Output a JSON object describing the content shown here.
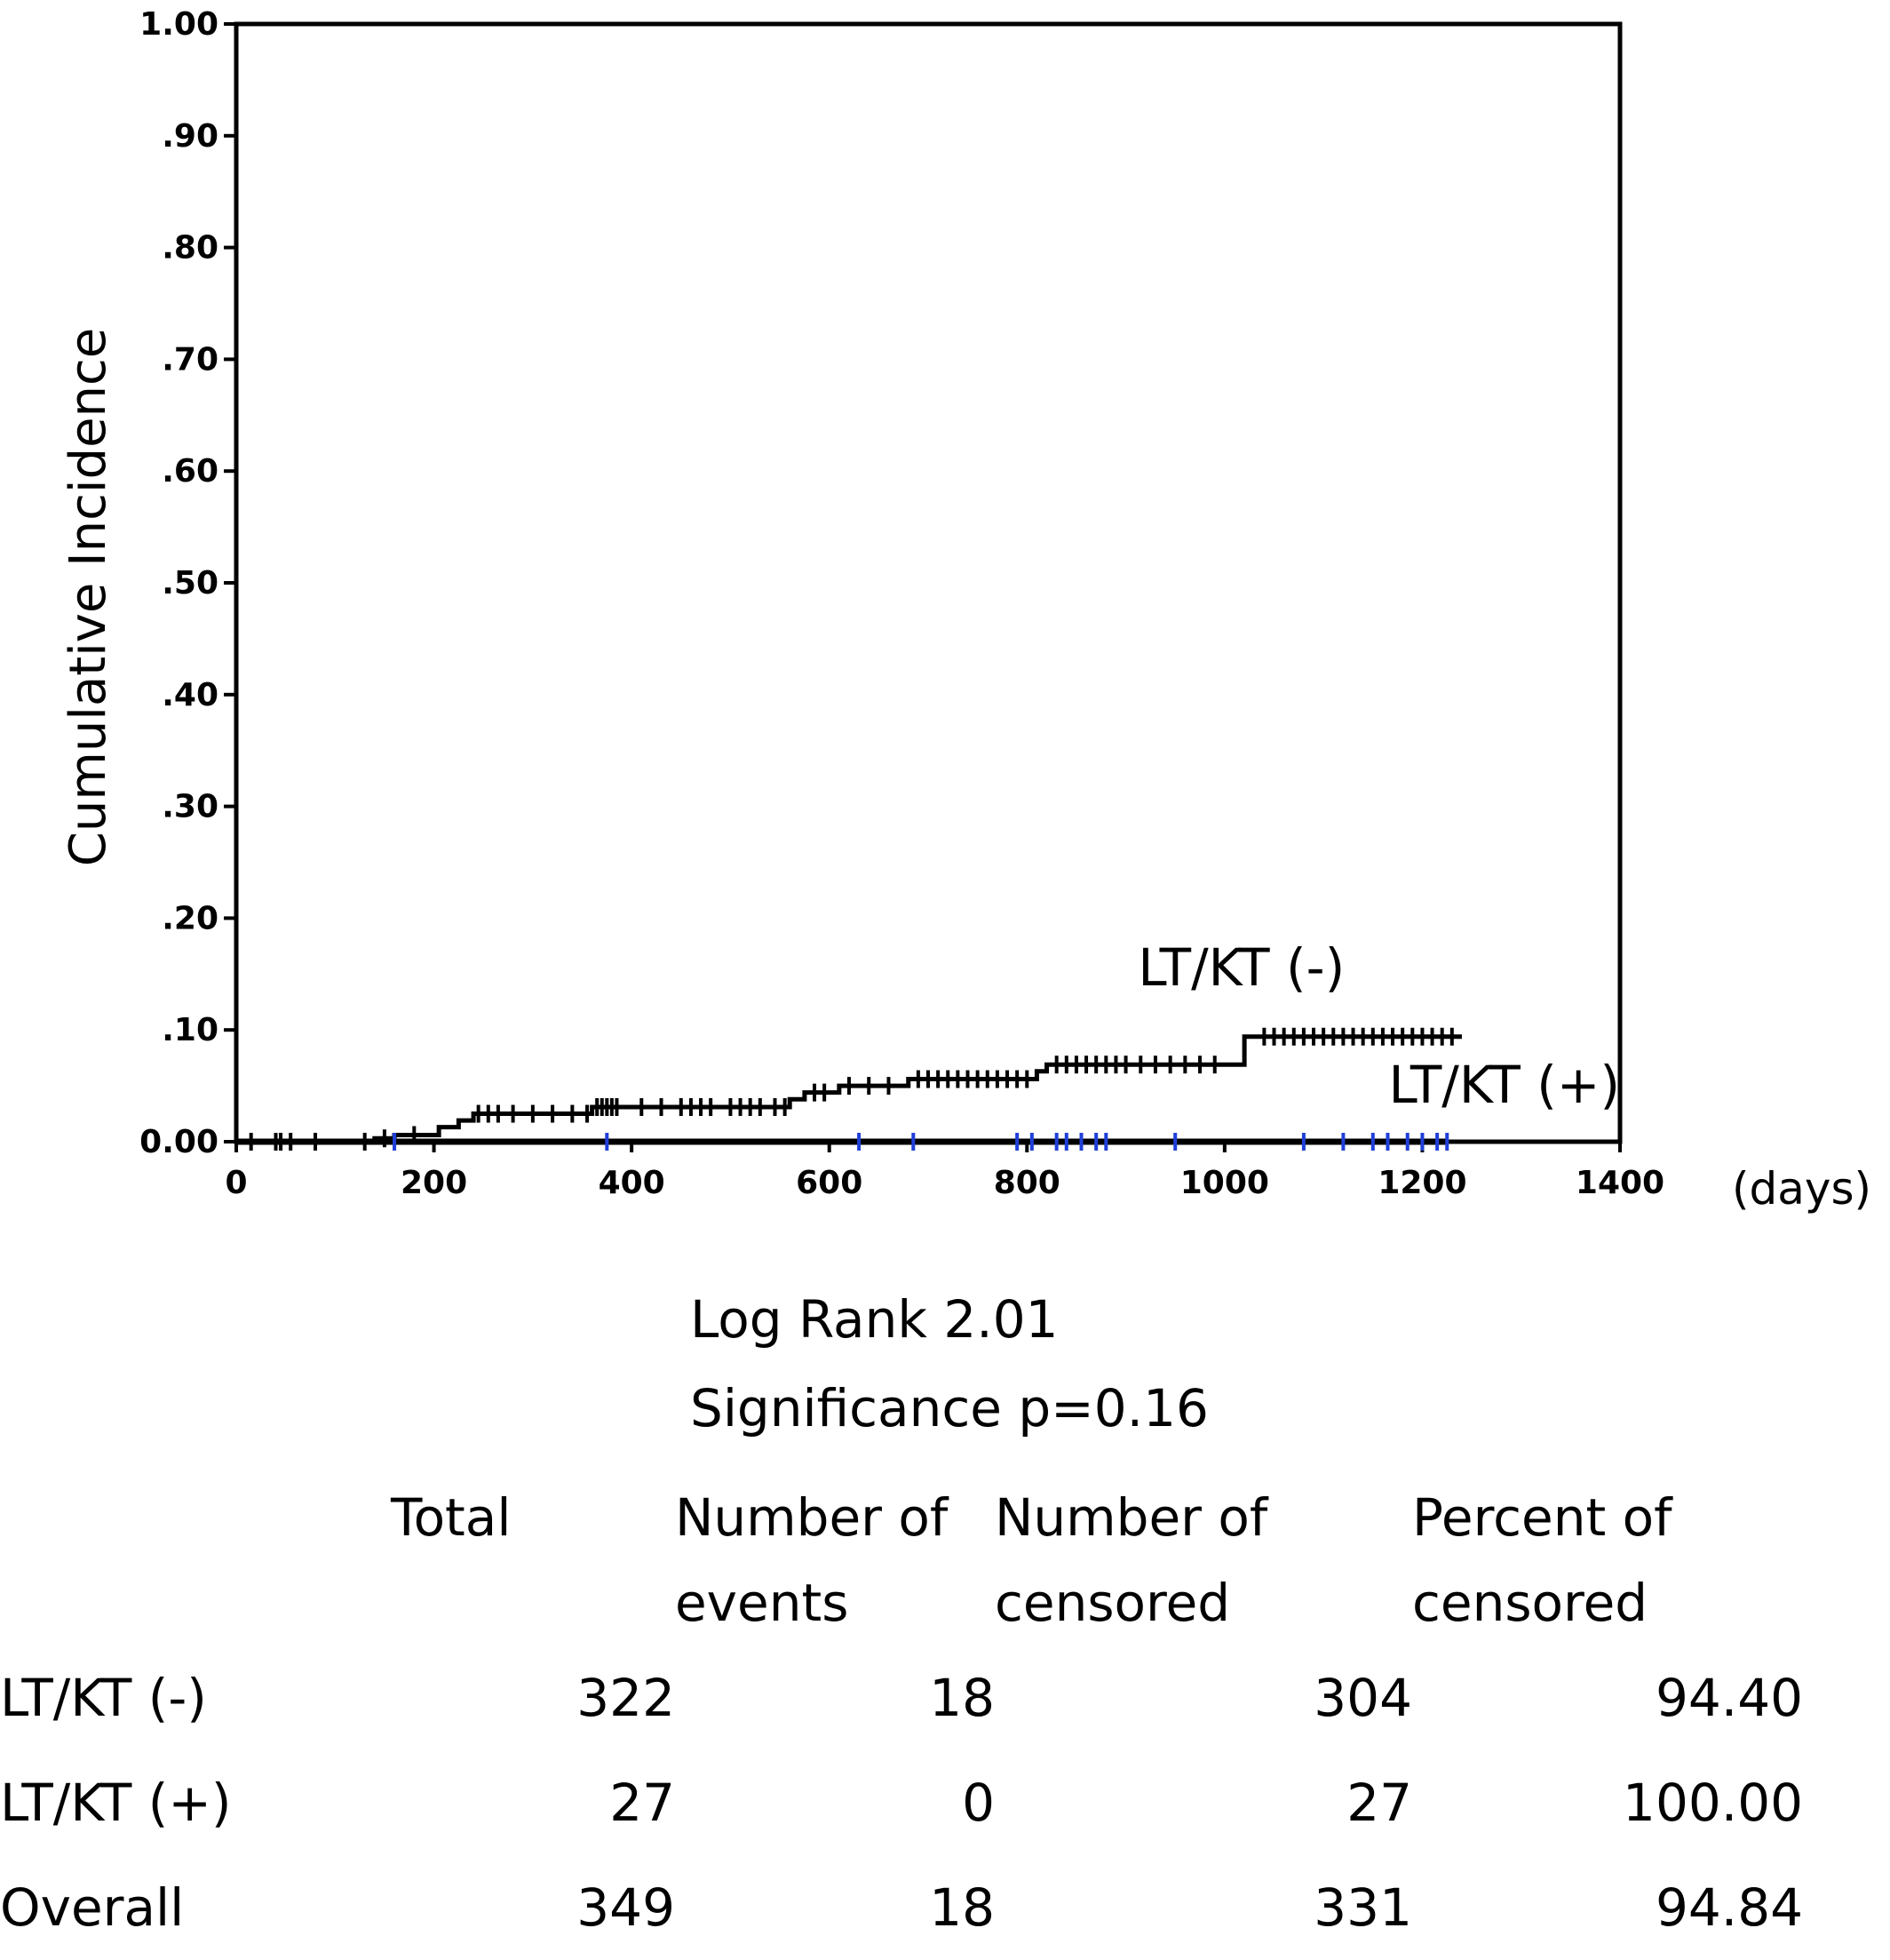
{
  "chart_data": {
    "type": "line",
    "title": "",
    "xlabel": "",
    "x_unit": "(days)",
    "ylabel": "Cumulative Incidence",
    "xlim": [
      0,
      1400
    ],
    "ylim": [
      0,
      1.0
    ],
    "x_ticks": [
      "0",
      "200",
      "400",
      "600",
      "800",
      "1000",
      "1200",
      "1400"
    ],
    "y_ticks": [
      "0.00",
      ".10",
      ".20",
      ".30",
      ".40",
      ".50",
      ".60",
      ".70",
      ".80",
      ".90",
      "1.00"
    ],
    "grid": false,
    "series": [
      {
        "name": "LT/KT (-)",
        "color": "#000000",
        "steps": [
          {
            "x": 0,
            "y": 0.0
          },
          {
            "x": 140,
            "y": 0.003
          },
          {
            "x": 160,
            "y": 0.006
          },
          {
            "x": 205,
            "y": 0.013
          },
          {
            "x": 225,
            "y": 0.019
          },
          {
            "x": 240,
            "y": 0.025
          },
          {
            "x": 360,
            "y": 0.031
          },
          {
            "x": 560,
            "y": 0.038
          },
          {
            "x": 575,
            "y": 0.044
          },
          {
            "x": 610,
            "y": 0.05
          },
          {
            "x": 680,
            "y": 0.056
          },
          {
            "x": 810,
            "y": 0.063
          },
          {
            "x": 820,
            "y": 0.069
          },
          {
            "x": 1020,
            "y": 0.094
          }
        ],
        "end_x": 1240,
        "censored_x": [
          15,
          40,
          45,
          55,
          80,
          130,
          150,
          180,
          245,
          255,
          265,
          280,
          300,
          320,
          340,
          355,
          365,
          370,
          375,
          380,
          385,
          410,
          430,
          450,
          460,
          470,
          480,
          500,
          510,
          520,
          530,
          545,
          555,
          585,
          595,
          620,
          640,
          660,
          690,
          700,
          710,
          720,
          730,
          740,
          750,
          760,
          770,
          780,
          790,
          800,
          830,
          840,
          850,
          860,
          870,
          880,
          890,
          900,
          915,
          930,
          945,
          960,
          975,
          990,
          1040,
          1050,
          1060,
          1070,
          1080,
          1090,
          1100,
          1110,
          1120,
          1130,
          1140,
          1150,
          1160,
          1170,
          1180,
          1190,
          1200,
          1210,
          1220,
          1230
        ]
      },
      {
        "name": "LT/KT (+)",
        "color": "#000000",
        "steps": [
          {
            "x": 0,
            "y": 0.0
          }
        ],
        "end_x": 1225,
        "censored_x": [
          160,
          375,
          630,
          685,
          790,
          805,
          830,
          840,
          855,
          870,
          880,
          950,
          1080,
          1120,
          1150,
          1165,
          1185,
          1200,
          1215,
          1225
        ]
      }
    ],
    "series_labels": [
      {
        "text": "LT/KT  (-)",
        "x": 1017,
        "y": 0.14
      },
      {
        "text": "LT/KT  (+)",
        "x": 1283,
        "y": 0.035
      }
    ]
  },
  "stats": {
    "log_rank": "Log Rank 2.01",
    "significance": "Significance p=0.16"
  },
  "table": {
    "headers": [
      "",
      "Total",
      "Number  of\nevents",
      "Number  of\ncensored",
      "Percent  of\ncensored"
    ],
    "rows": [
      {
        "label": "LT/KT  (-)",
        "total": "322",
        "events": "18",
        "censored": "304",
        "percent": "94.40"
      },
      {
        "label": "LT/KT  (+)",
        "total": "27",
        "events": "0",
        "censored": "27",
        "percent": "100.00"
      },
      {
        "label": "Overall",
        "total": "349",
        "events": "18",
        "censored": "331",
        "percent": "94.84"
      }
    ]
  }
}
